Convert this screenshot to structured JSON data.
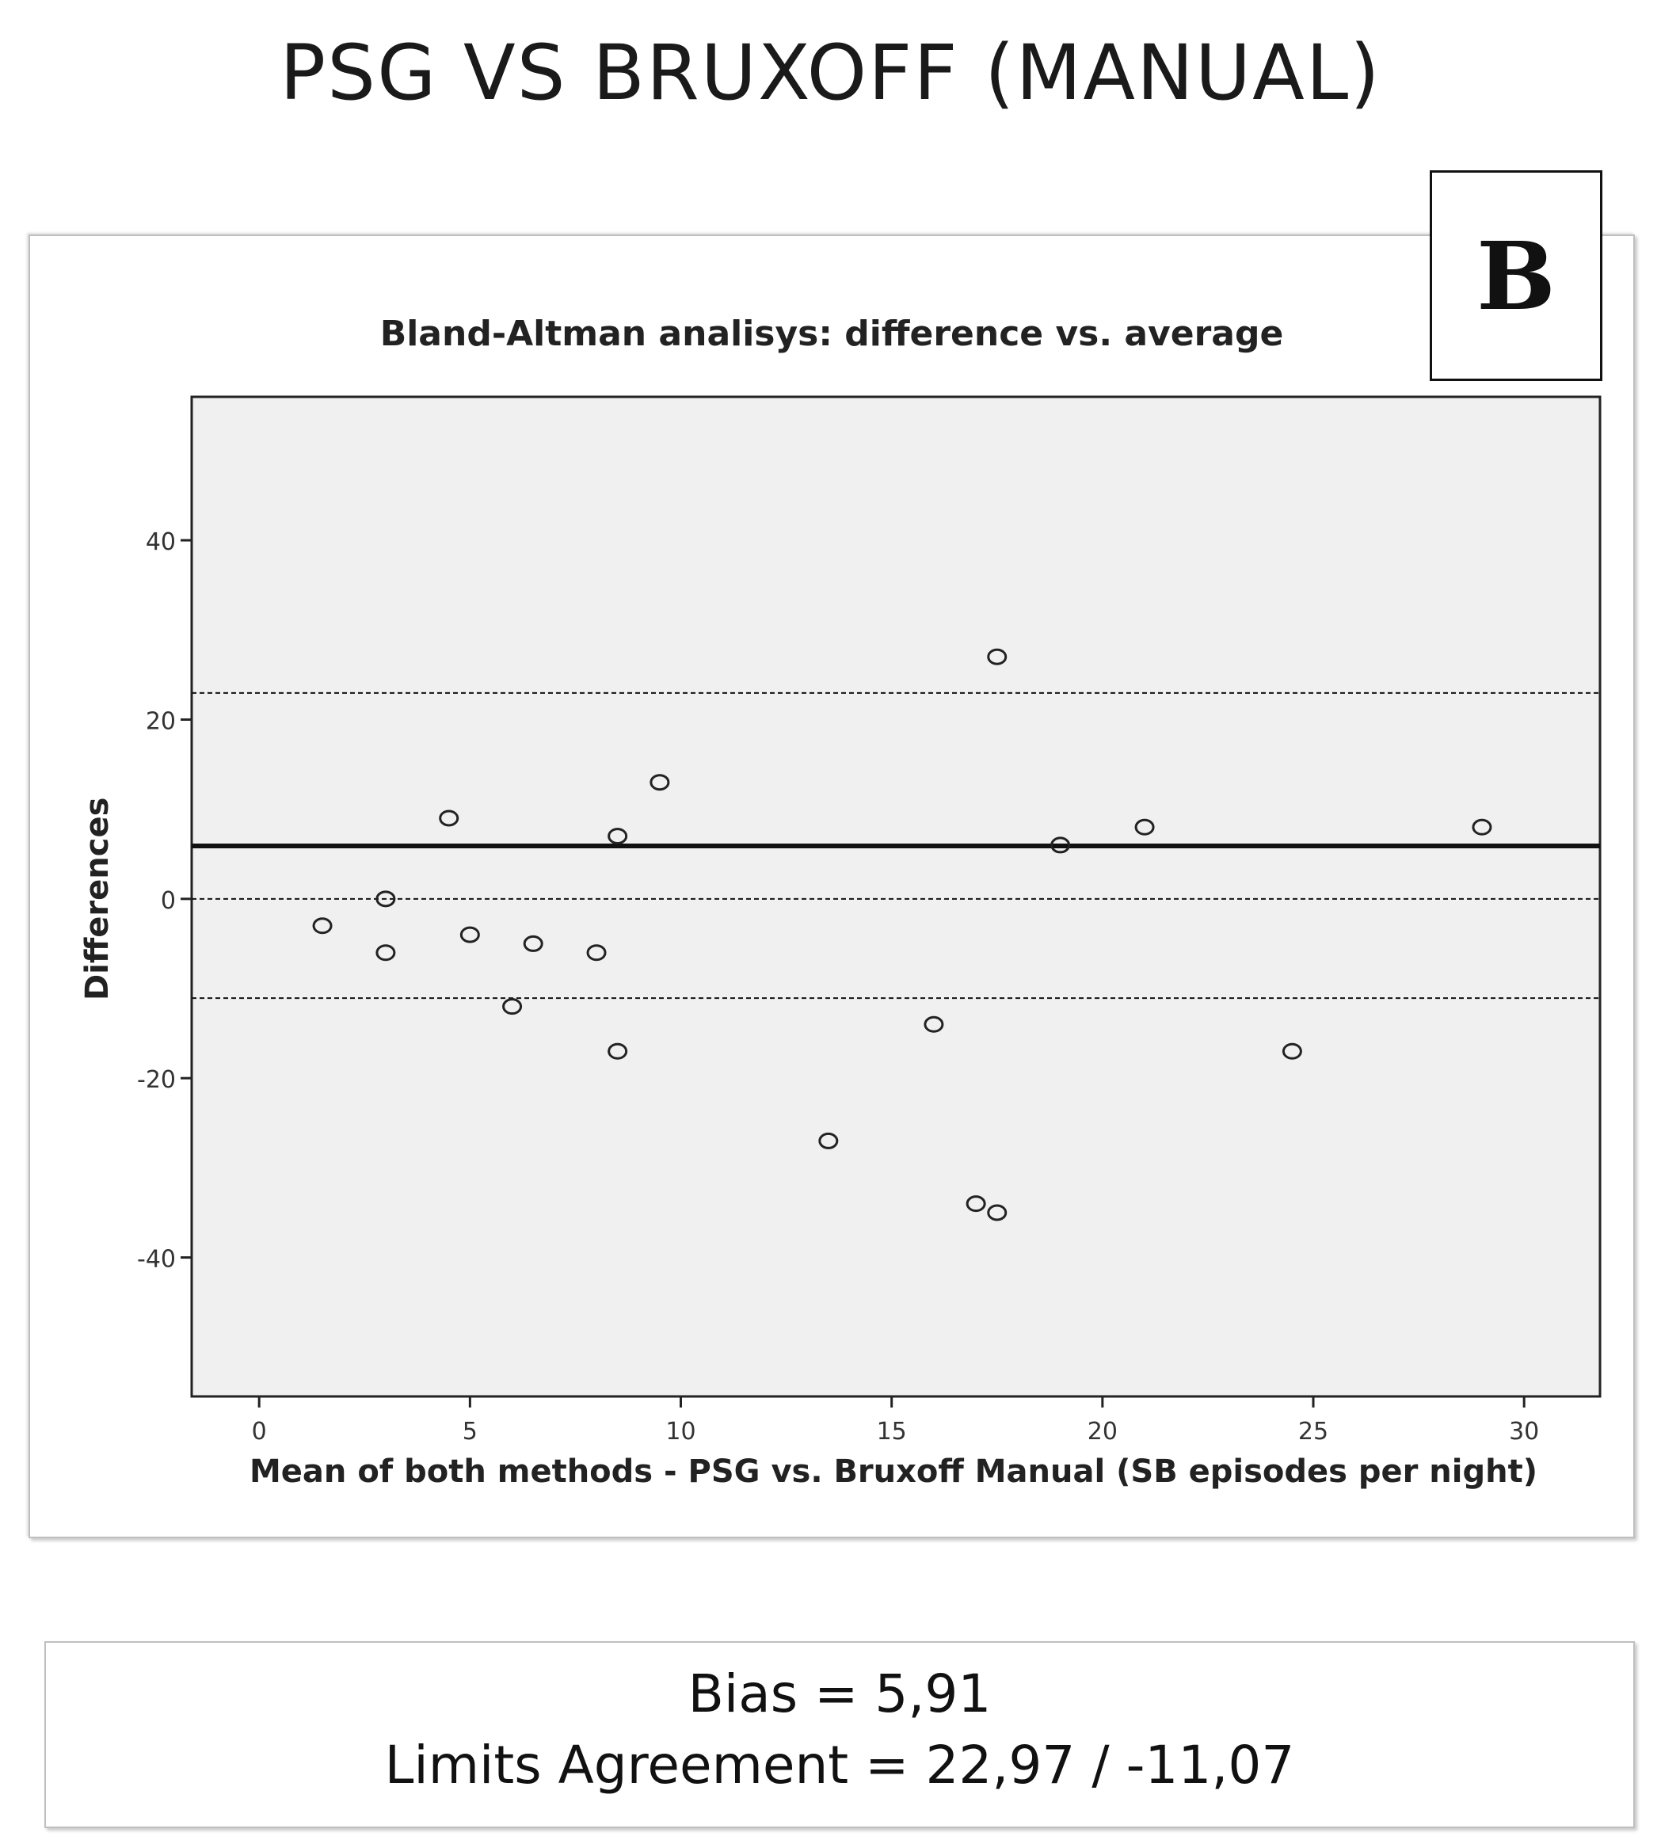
{
  "page": {
    "title": "PSG VS BRUXOFF (MANUAL)",
    "panel_label": "B",
    "bias_text": "Bias = 5,91",
    "limits_text": "Limits Agreement  = 22,97 / -11,07"
  },
  "chart_data": {
    "type": "scatter",
    "title": "Bland-Altman analisys: difference vs. average",
    "xlabel": "Mean of both methods - PSG vs. Bruxoff Manual (SB episodes per night)",
    "ylabel": "Differences",
    "xlim": [
      -1.6,
      31.8
    ],
    "ylim": [
      -55.5,
      56
    ],
    "x_ticks": [
      0,
      5,
      10,
      15,
      20,
      25,
      30
    ],
    "y_ticks": [
      -40,
      -20,
      0,
      20,
      40
    ],
    "grid": false,
    "legend": "none",
    "series": [
      {
        "x": [
          1.5,
          3,
          3,
          4.5,
          5,
          6,
          6.5,
          8,
          8.5,
          8.5,
          9.5,
          13.5,
          16,
          17,
          17.5,
          17.5,
          19,
          21,
          24.5,
          29
        ],
        "y": [
          -3,
          0,
          -6,
          9,
          -4,
          -12,
          -5,
          -6,
          7,
          -17,
          13,
          -27,
          -14,
          -34,
          27,
          -35,
          6,
          8,
          -17,
          8
        ]
      }
    ],
    "reference_lines": [
      {
        "y": 5.91,
        "style": "solid"
      },
      {
        "y": 22.97,
        "style": "dashed"
      },
      {
        "y": 0,
        "style": "dashed"
      },
      {
        "y": -11.07,
        "style": "dashed"
      }
    ],
    "colors": {
      "plot_background": "#f0f0f0",
      "marker": "#222222",
      "axis": "#222222"
    }
  }
}
